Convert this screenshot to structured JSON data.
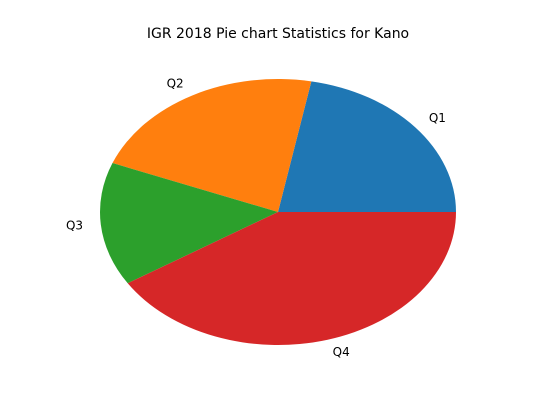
{
  "chart_data": {
    "type": "pie",
    "title": "IGR 2018 Pie chart Statistics for Kano",
    "categories": [
      "Q1",
      "Q2",
      "Q3",
      "Q4"
    ],
    "values": [
      22,
      22,
      15,
      41
    ],
    "colors": [
      "#1f77b4",
      "#ff7f0e",
      "#2ca02c",
      "#d62728"
    ],
    "start_angle": 0,
    "direction": "counterclockwise",
    "legend": "none"
  }
}
